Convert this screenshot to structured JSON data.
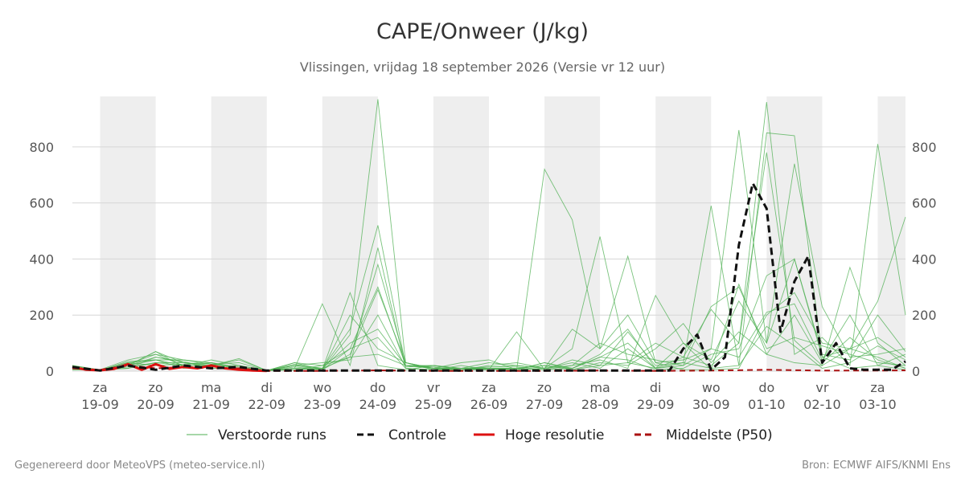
{
  "title": "CAPE/Onweer (J/kg)",
  "subtitle": "Vlissingen, vrijdag 18 september 2026 (Versie vr 12 uur)",
  "footer": {
    "left": "Gegenereerd door MeteoVPS (meteo-service.nl)",
    "right": "Bron: ECMWF AIFS/KNMI Ens"
  },
  "chart_data": {
    "type": "line",
    "title": "CAPE/Onweer (J/kg)",
    "ylabel": "",
    "xlabel": "",
    "x_range": [
      "2026-09-18 12:00",
      "2026-10-03 12:00"
    ],
    "ylim": [
      0,
      980
    ],
    "yticks": [
      0,
      200,
      400,
      600,
      800
    ],
    "grid": true,
    "weekend_shading": true,
    "legend_position": "bottom",
    "xticks": [
      {
        "date": "2026-09-19",
        "day": "za",
        "label": "19-09"
      },
      {
        "date": "2026-09-20",
        "day": "zo",
        "label": "20-09"
      },
      {
        "date": "2026-09-21",
        "day": "ma",
        "label": "21-09"
      },
      {
        "date": "2026-09-22",
        "day": "di",
        "label": "22-09"
      },
      {
        "date": "2026-09-23",
        "day": "wo",
        "label": "23-09"
      },
      {
        "date": "2026-09-24",
        "day": "do",
        "label": "24-09"
      },
      {
        "date": "2026-09-25",
        "day": "vr",
        "label": "25-09"
      },
      {
        "date": "2026-09-26",
        "day": "za",
        "label": "26-09"
      },
      {
        "date": "2026-09-27",
        "day": "zo",
        "label": "27-09"
      },
      {
        "date": "2026-09-28",
        "day": "ma",
        "label": "28-09"
      },
      {
        "date": "2026-09-29",
        "day": "di",
        "label": "29-09"
      },
      {
        "date": "2026-09-30",
        "day": "wo",
        "label": "30-09"
      },
      {
        "date": "2026-10-01",
        "day": "do",
        "label": "01-10"
      },
      {
        "date": "2026-10-02",
        "day": "vr",
        "label": "02-10"
      },
      {
        "date": "2026-10-03",
        "day": "za",
        "label": "03-10"
      }
    ],
    "legend": [
      {
        "name": "Verstoorde runs",
        "color": "#4caf50",
        "style": "thin"
      },
      {
        "name": "Controle",
        "color": "#111111",
        "style": "dashed"
      },
      {
        "name": "Hoge resolutie",
        "color": "#dd1111",
        "style": "solid"
      },
      {
        "name": "Middelste (P50)",
        "color": "#aa1111",
        "style": "dashed"
      }
    ],
    "series": [
      {
        "name": "Controle",
        "color": "#111111",
        "x": [
          "2026-09-18 12:00",
          "2026-09-19 00:00",
          "2026-09-19 12:00",
          "2026-09-20 00:00",
          "2026-09-20 12:00",
          "2026-09-21 00:00",
          "2026-09-21 12:00",
          "2026-09-22 00:00",
          "2026-09-23 00:00",
          "2026-09-24 00:00",
          "2026-09-25 00:00",
          "2026-09-26 00:00",
          "2026-09-27 00:00",
          "2026-09-28 00:00",
          "2026-09-29 00:00",
          "2026-09-29 06:00",
          "2026-09-29 12:00",
          "2026-09-29 18:00",
          "2026-09-30 00:00",
          "2026-09-30 06:00",
          "2026-09-30 12:00",
          "2026-09-30 18:00",
          "2026-10-01 00:00",
          "2026-10-01 06:00",
          "2026-10-01 12:00",
          "2026-10-01 18:00",
          "2026-10-02 00:00",
          "2026-10-02 06:00",
          "2026-10-02 12:00",
          "2026-10-02 18:00",
          "2026-10-03 00:00",
          "2026-10-03 06:00",
          "2026-10-03 12:00"
        ],
        "values": [
          15,
          2,
          20,
          5,
          20,
          10,
          15,
          2,
          2,
          2,
          2,
          2,
          2,
          2,
          2,
          2,
          80,
          130,
          5,
          50,
          450,
          670,
          580,
          140,
          320,
          410,
          30,
          100,
          10,
          5,
          5,
          5,
          35
        ]
      },
      {
        "name": "Hoge resolutie",
        "color": "#dd1111",
        "x": [
          "2026-09-18 12:00",
          "2026-09-18 18:00",
          "2026-09-19 00:00",
          "2026-09-19 06:00",
          "2026-09-19 12:00",
          "2026-09-19 18:00",
          "2026-09-20 00:00",
          "2026-09-20 06:00",
          "2026-09-20 12:00",
          "2026-09-20 18:00",
          "2026-09-21 00:00",
          "2026-09-21 06:00",
          "2026-09-21 12:00",
          "2026-09-21 18:00",
          "2026-09-22 00:00"
        ],
        "values": [
          15,
          5,
          3,
          8,
          25,
          5,
          25,
          8,
          15,
          10,
          20,
          10,
          5,
          2,
          1
        ]
      },
      {
        "name": "Middelste (P50)",
        "color": "#aa1111",
        "x": [
          "2026-09-18 12:00",
          "2026-09-19 00:00",
          "2026-09-19 12:00",
          "2026-09-20 00:00",
          "2026-09-20 12:00",
          "2026-09-21 00:00",
          "2026-09-21 12:00",
          "2026-09-22 00:00",
          "2026-09-23 00:00",
          "2026-09-24 00:00",
          "2026-09-25 00:00",
          "2026-09-26 00:00",
          "2026-09-27 00:00",
          "2026-09-28 00:00",
          "2026-09-29 00:00",
          "2026-09-30 00:00",
          "2026-10-01 00:00",
          "2026-10-02 00:00",
          "2026-10-03 00:00",
          "2026-10-03 12:00"
        ],
        "values": [
          10,
          5,
          20,
          10,
          15,
          10,
          10,
          1,
          1,
          3,
          1,
          1,
          1,
          2,
          1,
          2,
          5,
          2,
          2,
          3
        ]
      },
      {
        "name": "Verstoorde runs",
        "color": "#4caf50",
        "x": [
          "2026-09-18 12:00",
          "2026-09-19 00:00",
          "2026-09-19 12:00",
          "2026-09-20 00:00",
          "2026-09-20 12:00",
          "2026-09-21 00:00",
          "2026-09-21 12:00",
          "2026-09-22 00:00",
          "2026-09-22 12:00",
          "2026-09-23 00:00",
          "2026-09-23 12:00",
          "2026-09-24 00:00",
          "2026-09-24 12:00",
          "2026-09-25 00:00",
          "2026-09-25 12:00",
          "2026-09-26 00:00",
          "2026-09-26 12:00",
          "2026-09-27 00:00",
          "2026-09-27 12:00",
          "2026-09-28 00:00",
          "2026-09-28 12:00",
          "2026-09-29 00:00",
          "2026-09-29 12:00",
          "2026-09-30 00:00",
          "2026-09-30 12:00",
          "2026-10-01 00:00",
          "2026-10-01 12:00",
          "2026-10-02 00:00",
          "2026-10-02 12:00",
          "2026-10-03 00:00",
          "2026-10-03 12:00"
        ],
        "members": [
          [
            20,
            5,
            40,
            60,
            40,
            30,
            10,
            2,
            30,
            20,
            80,
            300,
            20,
            10,
            5,
            10,
            5,
            30,
            5,
            20,
            30,
            10,
            100,
            40,
            250,
            100,
            400,
            50,
            80,
            250,
            550
          ],
          [
            10,
            5,
            20,
            70,
            30,
            20,
            40,
            2,
            10,
            5,
            130,
            970,
            30,
            10,
            5,
            10,
            5,
            720,
            540,
            80,
            410,
            30,
            5,
            5,
            10,
            200,
            280,
            100,
            80,
            50,
            10
          ],
          [
            15,
            2,
            30,
            40,
            20,
            20,
            5,
            2,
            20,
            10,
            150,
            520,
            20,
            20,
            10,
            15,
            20,
            10,
            80,
            480,
            30,
            100,
            50,
            220,
            100,
            960,
            60,
            120,
            20,
            810,
            200
          ],
          [
            5,
            5,
            10,
            50,
            30,
            25,
            30,
            2,
            5,
            20,
            50,
            380,
            30,
            5,
            5,
            10,
            10,
            20,
            10,
            50,
            100,
            10,
            30,
            590,
            20,
            850,
            840,
            50,
            10,
            20,
            60
          ],
          [
            10,
            3,
            20,
            40,
            10,
            15,
            10,
            2,
            10,
            240,
            20,
            440,
            10,
            5,
            10,
            30,
            20,
            10,
            150,
            80,
            200,
            30,
            40,
            80,
            860,
            100,
            740,
            230,
            50,
            60,
            80
          ],
          [
            15,
            5,
            30,
            20,
            25,
            30,
            5,
            2,
            20,
            5,
            280,
            20,
            5,
            20,
            5,
            5,
            140,
            5,
            20,
            40,
            10,
            270,
            100,
            5,
            310,
            60,
            30,
            20,
            370,
            100,
            20
          ],
          [
            8,
            3,
            15,
            30,
            20,
            40,
            20,
            2,
            30,
            5,
            60,
            290,
            30,
            10,
            30,
            40,
            5,
            30,
            10,
            60,
            150,
            10,
            50,
            20,
            100,
            780,
            110,
            20,
            80,
            120,
            50
          ],
          [
            12,
            4,
            20,
            50,
            35,
            10,
            10,
            2,
            5,
            10,
            100,
            150,
            20,
            15,
            5,
            20,
            30,
            10,
            20,
            100,
            60,
            40,
            20,
            80,
            50,
            210,
            240,
            40,
            200,
            20,
            5
          ],
          [
            20,
            3,
            25,
            60,
            20,
            20,
            45,
            2,
            15,
            5,
            200,
            80,
            30,
            10,
            10,
            5,
            10,
            5,
            40,
            20,
            140,
            20,
            30,
            10,
            20,
            160,
            90,
            10,
            30,
            90,
            40
          ],
          [
            10,
            2,
            35,
            40,
            40,
            25,
            10,
            2,
            20,
            30,
            40,
            200,
            15,
            20,
            10,
            10,
            10,
            20,
            5,
            30,
            20,
            80,
            170,
            30,
            140,
            60,
            200,
            30,
            120,
            40,
            10
          ],
          [
            5,
            5,
            10,
            30,
            30,
            15,
            20,
            2,
            10,
            5,
            80,
            120,
            10,
            5,
            20,
            5,
            5,
            10,
            30,
            10,
            80,
            10,
            20,
            230,
            300,
            80,
            120,
            90,
            60,
            30,
            20
          ],
          [
            15,
            4,
            20,
            70,
            15,
            30,
            15,
            2,
            25,
            10,
            50,
            60,
            20,
            10,
            5,
            15,
            15,
            5,
            10,
            50,
            40,
            5,
            10,
            60,
            80,
            340,
            400,
            60,
            40,
            200,
            70
          ]
        ]
      }
    ]
  }
}
